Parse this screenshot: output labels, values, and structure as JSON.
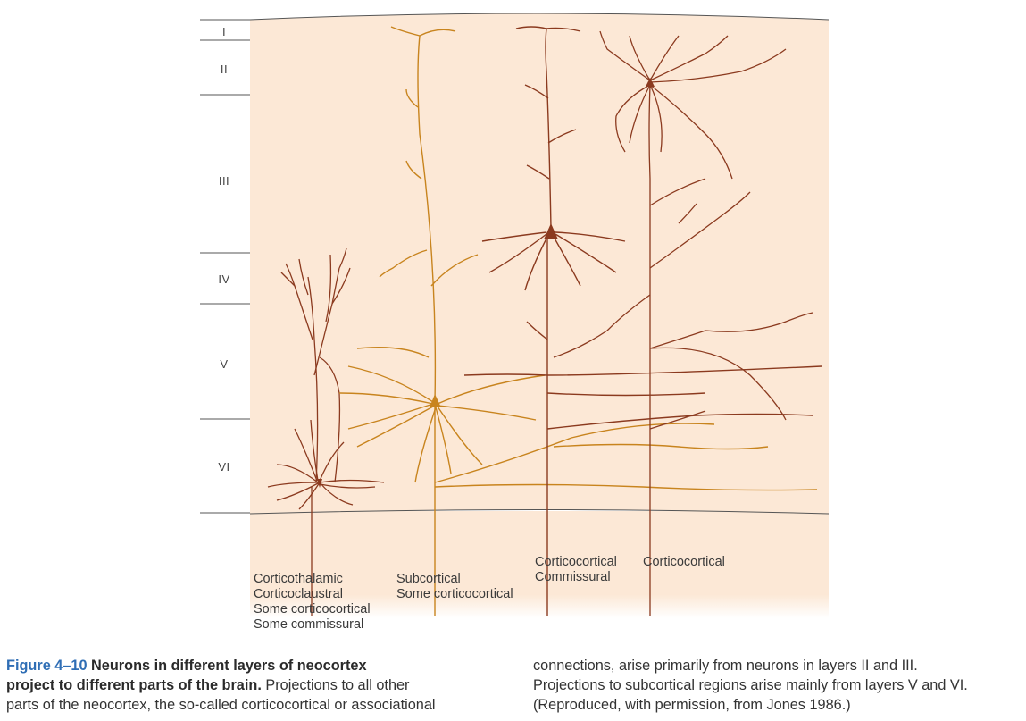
{
  "figure": {
    "layers": [
      "I",
      "II",
      "III",
      "IV",
      "V",
      "VI"
    ],
    "neuron_labels": [
      {
        "lines": [
          "Corticothalamic",
          "Corticoclaustral",
          "Some corticocortical",
          "Some commissural"
        ]
      },
      {
        "lines": [
          "Subcortical",
          "Some corticocortical"
        ]
      },
      {
        "lines": [
          "Corticocortical",
          "Commissural"
        ]
      },
      {
        "lines": [
          "Corticocortical"
        ]
      }
    ],
    "colors": {
      "background": "#fce8d6",
      "dark_neuron": "#8b3a1f",
      "light_neuron": "#c8841e",
      "caption_number": "#2f6eb5"
    }
  },
  "caption": {
    "number": "Figure 4–10",
    "title_line1": "Neurons in different layers of neocortex",
    "title_line2": "project to different parts of the brain.",
    "text_line2_rest": " Projections to all other",
    "text_line3": "parts of the neocortex, the so-called corticocortical or associational",
    "right_lines": [
      "connections, arise primarily from neurons in layers II and III.",
      "Projections to subcortical regions arise mainly from layers V and VI.",
      "(Reproduced, with permission, from Jones 1986.)"
    ]
  }
}
